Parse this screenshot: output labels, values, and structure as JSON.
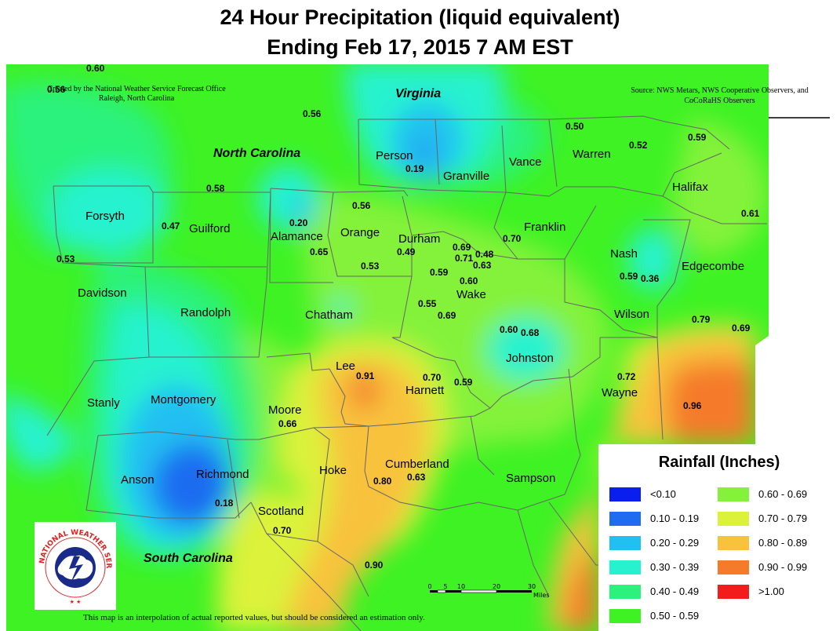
{
  "title": {
    "line1": "24 Hour Precipitation (liquid equivalent)",
    "line2": "Ending Feb 17, 2015   7 AM EST"
  },
  "credit": "Created by the National Weather Service Forecast Office Raleigh, North Carolina",
  "credit_top_value": "0.56",
  "source": "Source: NWS Metars, NWS Cooperative Observers, and CoCoRaHS Observers",
  "states": {
    "virginia": "Virginia",
    "north_carolina": "North Carolina",
    "south_carolina": "South Carolina"
  },
  "counties": [
    "Forsyth",
    "Guilford",
    "Alamance",
    "Orange",
    "Durham",
    "Person",
    "Granville",
    "Vance",
    "Warren",
    "Halifax",
    "Franklin",
    "Nash",
    "Edgecombe",
    "Davidson",
    "Randolph",
    "Chatham",
    "Wake",
    "Wilson",
    "Johnston",
    "Lee",
    "Harnett",
    "Wayne",
    "Stanly",
    "Montgomery",
    "Moore",
    "Anson",
    "Richmond",
    "Hoke",
    "Cumberland",
    "Sampson",
    "Scotland"
  ],
  "rain_values": [
    "0.60",
    "0.56",
    "0.50",
    "0.52",
    "0.59",
    "0.19",
    "0.58",
    "0.20",
    "0.56",
    "0.61",
    "0.47",
    "0.65",
    "0.69",
    "0.71",
    "0.48",
    "0.63",
    "0.70",
    "0.53",
    "0.53",
    "0.49",
    "0.59",
    "0.60",
    "0.59",
    "0.36",
    "0.55",
    "0.69",
    "0.79",
    "0.69",
    "0.60",
    "0.68",
    "0.91",
    "0.70",
    "0.59",
    "0.72",
    "0.96",
    "0.66",
    "0.80",
    "0.63",
    "0.18",
    "0.70",
    "0.90"
  ],
  "legend": {
    "title": "Rainfall (Inches)",
    "items": [
      {
        "label": "<0.10",
        "color": "#0a1ef0"
      },
      {
        "label": "0.10 - 0.19",
        "color": "#1f6cf0"
      },
      {
        "label": "0.20 - 0.29",
        "color": "#22c0f2"
      },
      {
        "label": "0.30 - 0.39",
        "color": "#26f2cf"
      },
      {
        "label": "0.40 - 0.49",
        "color": "#2af27d"
      },
      {
        "label": "0.50 - 0.59",
        "color": "#3ef224"
      },
      {
        "label": "0.60 - 0.69",
        "color": "#84f23a"
      },
      {
        "label": "0.70 - 0.79",
        "color": "#dcf23a"
      },
      {
        "label": "0.80 - 0.89",
        "color": "#f8c23c"
      },
      {
        "label": "0.90 - 0.99",
        "color": "#f57a2a"
      },
      {
        "label": ">1.00",
        "color": "#f21c1c"
      }
    ]
  },
  "scale": {
    "ticks": [
      "0",
      "5",
      "10",
      "20",
      "30"
    ],
    "unit": "Miles"
  },
  "logo_text": "NATIONAL WEATHER SERVICE",
  "note": "This map is an interpolation of actual reported values, but should be considered an estimation only."
}
